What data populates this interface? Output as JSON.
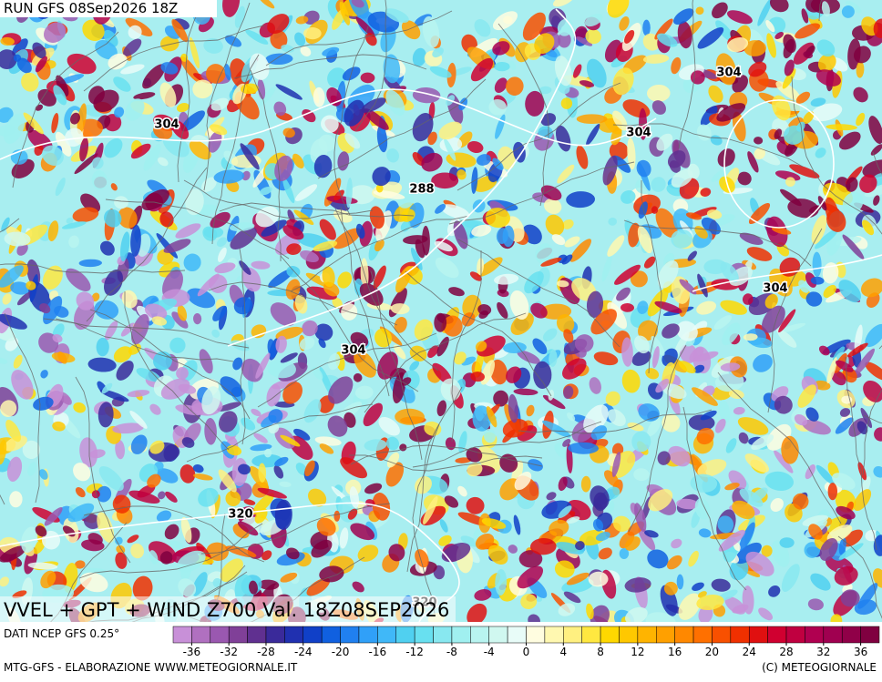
{
  "header": {
    "run": "RUN GFS 08Sep2026 18Z",
    "title": "VVEL + GPT + WIND Z700 Val. 18Z08SEP2026"
  },
  "footer": {
    "source": "DATI NCEP GFS 0.25°",
    "credit": "MTG-GFS - ELABORAZIONE WWW.METEOGIORNALE.IT",
    "copyright": "(C) METEOGIORNALE"
  },
  "contour_labels": [
    304,
    304,
    304,
    288,
    304,
    304,
    320,
    320
  ],
  "colorbar": {
    "range": [
      -38,
      38
    ],
    "ticks": [
      -36,
      -32,
      -28,
      -24,
      -20,
      -16,
      -12,
      -8,
      -4,
      0,
      4,
      8,
      12,
      16,
      20,
      24,
      28,
      32,
      36
    ],
    "colors": [
      "#c890d8",
      "#b070c0",
      "#9a58b0",
      "#804098",
      "#603090",
      "#3a2a9a",
      "#2030b0",
      "#1040c8",
      "#1060e0",
      "#2080f0",
      "#30a0f8",
      "#40b8f8",
      "#50d0f0",
      "#68e0f0",
      "#88e8f0",
      "#a0f0f0",
      "#b8f4f0",
      "#d0f8f0",
      "#e8fcf8",
      "#fffde0",
      "#fff8b0",
      "#fff080",
      "#ffe840",
      "#ffd800",
      "#ffc800",
      "#ffb400",
      "#ffa000",
      "#ff8800",
      "#ff7000",
      "#f85000",
      "#f03000",
      "#e01010",
      "#d00030",
      "#c00040",
      "#b00050",
      "#a00050",
      "#900048",
      "#800040"
    ]
  }
}
